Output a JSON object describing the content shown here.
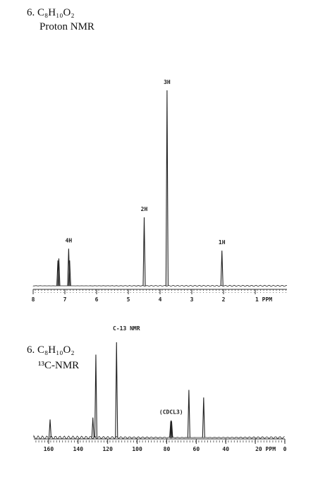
{
  "chart_data": [
    {
      "type": "spectrum",
      "title": "6. C₈H₁₀O₂",
      "subtitle": "Proton NMR",
      "x": [
        7.22,
        7.19,
        6.88,
        6.85,
        4.5,
        3.78,
        2.05
      ],
      "values": [
        13,
        14,
        19,
        13,
        35,
        100,
        18
      ],
      "peak_labels": [
        null,
        null,
        "4H",
        null,
        "2H",
        "3H",
        "1H"
      ],
      "xlim": [
        8,
        0
      ],
      "ylim": [
        0,
        100
      ],
      "xticks": [
        8,
        7,
        6,
        5,
        4,
        3,
        2,
        {
          "value": 1,
          "label": "1 PPM"
        }
      ],
      "color": "#222222"
    },
    {
      "type": "spectrum",
      "title": "6. C₈H₁₀O₂",
      "subtitle": "¹³C-NMR",
      "header": "C-13 NMR",
      "x": [
        159,
        130,
        128,
        114,
        77.3,
        77,
        76.7,
        65,
        55
      ],
      "values": [
        19,
        21,
        87,
        100,
        17,
        18,
        17,
        50,
        42
      ],
      "peak_labels": [
        null,
        null,
        null,
        null,
        null,
        "(CDCL3)",
        null,
        null,
        null
      ],
      "xlim": [
        170,
        0
      ],
      "ylim": [
        0,
        100
      ],
      "xticks": [
        160,
        140,
        120,
        100,
        80,
        60,
        40,
        {
          "value": 20,
          "label": "20 PPM"
        },
        0
      ],
      "color": "#222222"
    }
  ]
}
